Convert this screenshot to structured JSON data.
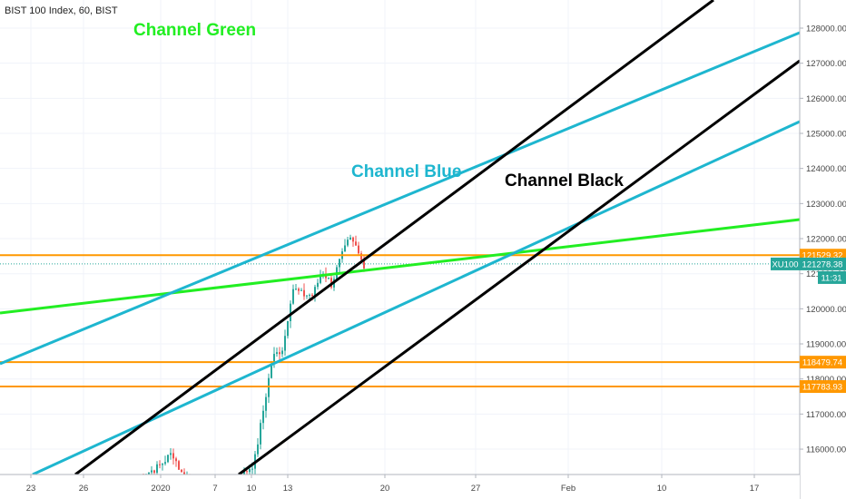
{
  "header": {
    "title": "BIST 100 Index, 60, BIST"
  },
  "chart_data": {
    "type": "candlestick",
    "title": "BIST 100 Index, 60, BIST",
    "y_ticks": [
      116000,
      117000,
      118000,
      119000,
      120000,
      121000,
      122000,
      123000,
      124000,
      125000,
      126000,
      127000,
      128000
    ],
    "x_ticks": [
      "23",
      "26",
      "2020",
      "7",
      "10",
      "13",
      "20",
      "27",
      "Feb",
      "10",
      "17"
    ],
    "ylim": [
      115000,
      128600
    ],
    "annotations": [
      "Channel Green",
      "Channel Blue",
      "Channel Black"
    ],
    "horizontal_levels": [
      {
        "value": 121529.32,
        "label": "121529.32",
        "color": "#ff9800"
      },
      {
        "value": 118479.74,
        "label": "118479.74",
        "color": "#ff9800"
      },
      {
        "value": 117783.93,
        "label": "117783.93",
        "color": "#ff9800"
      }
    ],
    "current_price": {
      "symbol": "XU100",
      "value": 121278.38,
      "label": "121278.38",
      "countdown": "11:31",
      "color": "#26a69a"
    },
    "colors": {
      "green_channel": "#22ee22",
      "blue_channel": "#1eb6cf",
      "black_channel": "#000000",
      "up_candle": "#26a69a",
      "down_candle": "#ef5350"
    }
  }
}
